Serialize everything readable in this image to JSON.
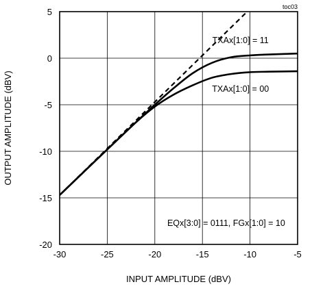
{
  "chart_data": {
    "type": "line",
    "tag": "toc03",
    "xlabel": "INPUT AMPLITUDE (dBV)",
    "ylabel": "OUTPUT AMPLITUDE (dBV)",
    "xlim": [
      -30,
      -5
    ],
    "ylim": [
      -20,
      5
    ],
    "xticks": [
      -30,
      -25,
      -20,
      -15,
      -10,
      -5
    ],
    "yticks": [
      -20,
      -15,
      -10,
      -5,
      0,
      5
    ],
    "xtick_labels": [
      "-30",
      "-25",
      "-20",
      "-15",
      "-10",
      "-5"
    ],
    "ytick_labels": [
      "-20",
      "-15",
      "-10",
      "-5",
      "0",
      "5"
    ],
    "grid": true,
    "series": [
      {
        "style": "dashed",
        "x": [
          -30,
          -25,
          -20,
          -15,
          -10,
          -9
        ],
        "y": [
          -14.7,
          -9.7,
          -4.7,
          0.3,
          5.3,
          6.3
        ]
      },
      {
        "style": "solid",
        "x": [
          -30,
          -25,
          -22,
          -20,
          -18,
          -16,
          -14,
          -12,
          -10,
          -8,
          -5
        ],
        "y": [
          -14.7,
          -9.8,
          -6.9,
          -5.0,
          -3.2,
          -1.6,
          -0.5,
          0.1,
          0.3,
          0.4,
          0.5
        ]
      },
      {
        "style": "solid",
        "x": [
          -30,
          -25,
          -22,
          -20,
          -18,
          -16,
          -14,
          -12,
          -10,
          -8,
          -5
        ],
        "y": [
          -14.7,
          -9.8,
          -6.9,
          -5.2,
          -3.9,
          -2.9,
          -2.1,
          -1.7,
          -1.5,
          -1.45,
          -1.4
        ]
      }
    ],
    "annotations": [
      {
        "id": "txa11",
        "text": "TXAx[1:0] = 11",
        "x": -11.0,
        "y": 1.6
      },
      {
        "id": "txa00",
        "text": "TXAx[1:0] = 00",
        "x": -11.0,
        "y": -3.6
      },
      {
        "id": "eqfg",
        "text": "EQx[3:0] = 0111, FGx[1:0] = 10",
        "x": -12.5,
        "y": -18.0
      }
    ]
  }
}
